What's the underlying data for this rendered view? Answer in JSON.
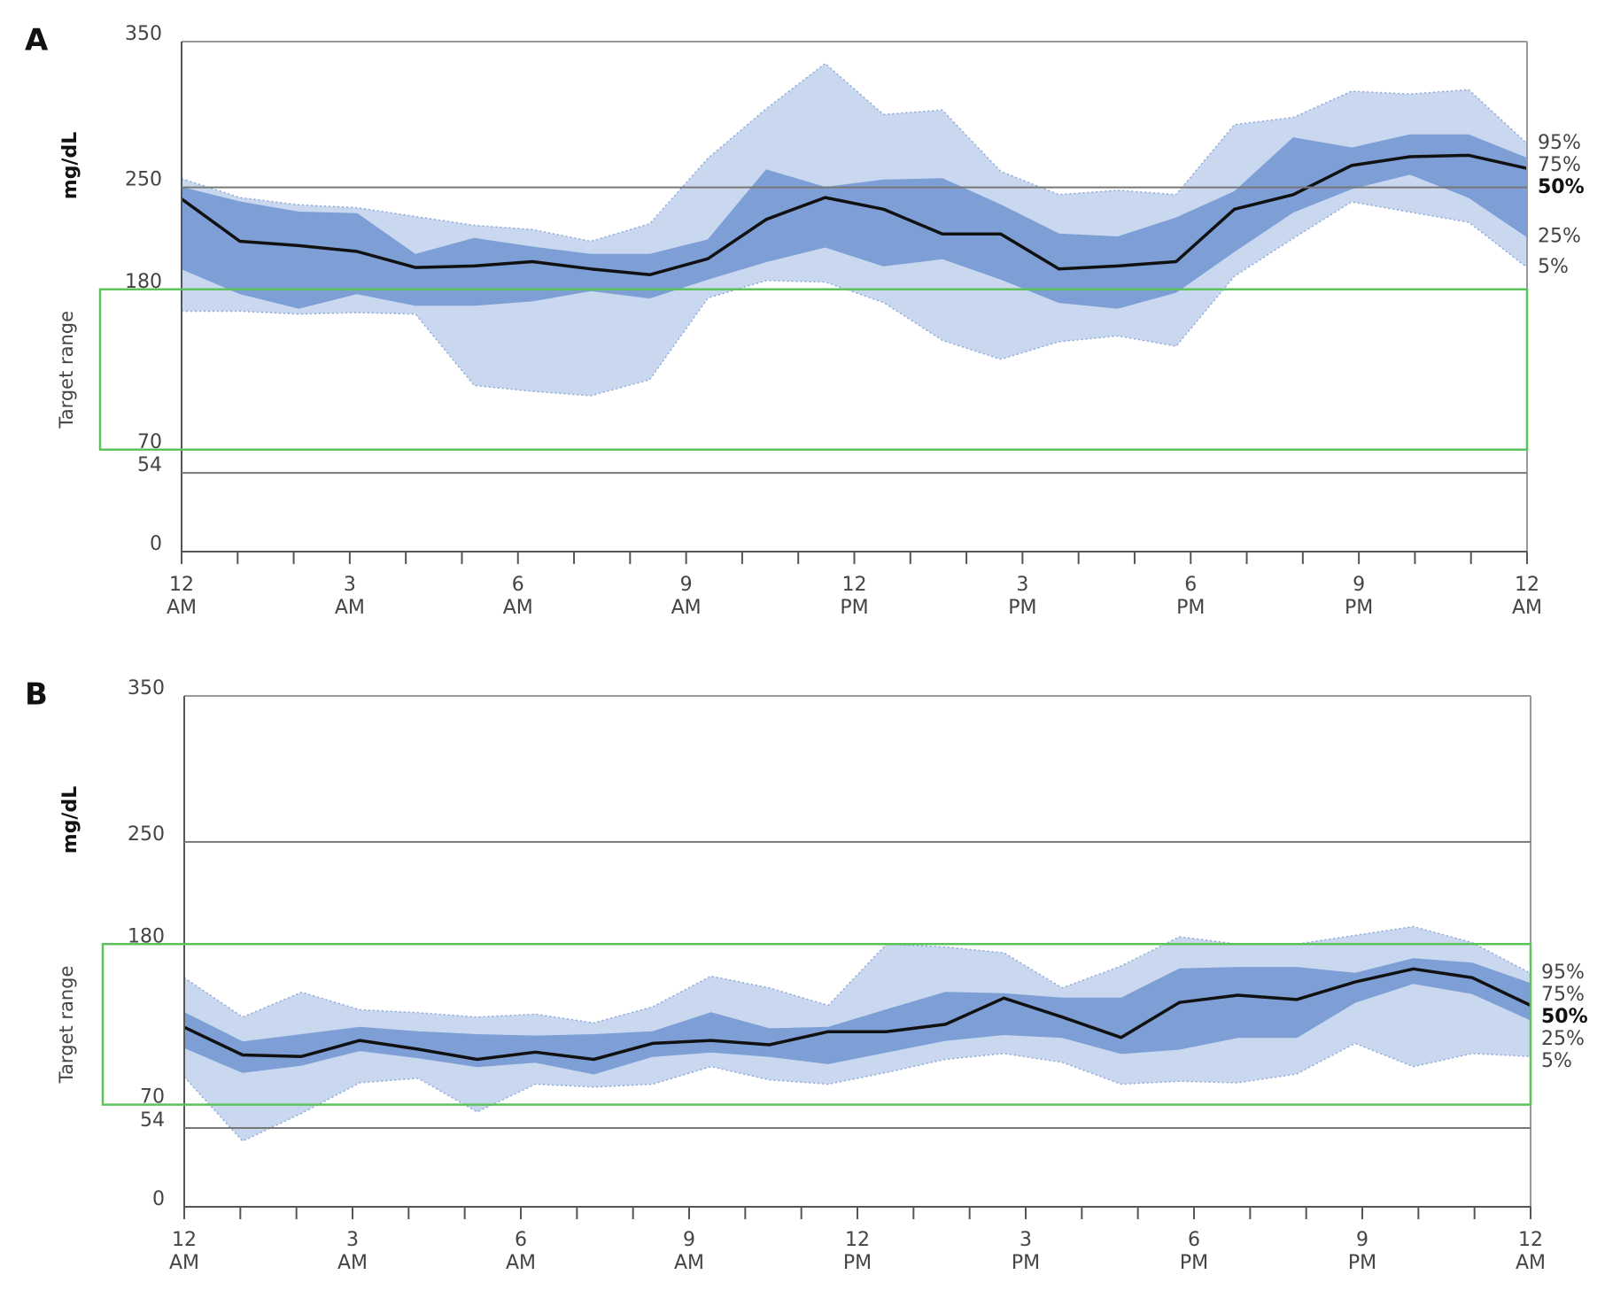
{
  "chart_data": [
    {
      "type": "line",
      "label": "A",
      "ylabel": "mg/dL",
      "target_label": "Target range",
      "target_range": [
        70,
        180
      ],
      "target_color": "#5cc25c",
      "ylim": [
        0,
        350
      ],
      "yticks": [
        0,
        54,
        70,
        180,
        250,
        350
      ],
      "grid_lines": [
        54,
        250
      ],
      "xlim": [
        0,
        24
      ],
      "xticks": [
        {
          "value": 0,
          "label": [
            "12",
            "AM"
          ]
        },
        {
          "value": 3,
          "label": [
            "3",
            "AM"
          ]
        },
        {
          "value": 6,
          "label": [
            "6",
            "AM"
          ]
        },
        {
          "value": 9,
          "label": [
            "9",
            "AM"
          ]
        },
        {
          "value": 12,
          "label": [
            "12",
            "PM"
          ]
        },
        {
          "value": 15,
          "label": [
            "3",
            "PM"
          ]
        },
        {
          "value": 18,
          "label": [
            "6",
            "PM"
          ]
        },
        {
          "value": 21,
          "label": [
            "9",
            "PM"
          ]
        },
        {
          "value": 24,
          "label": [
            "12",
            "AM"
          ]
        }
      ],
      "xminorticks": [
        1,
        2,
        4,
        5,
        7,
        8,
        10,
        11,
        13,
        14,
        16,
        17,
        19,
        20,
        22,
        23
      ],
      "x": [
        0,
        1.04,
        2.09,
        3.13,
        4.17,
        5.22,
        6.26,
        7.3,
        8.35,
        9.39,
        10.43,
        11.48,
        12.52,
        13.57,
        14.61,
        15.65,
        16.7,
        17.74,
        18.78,
        19.83,
        20.87,
        21.91,
        22.96,
        24
      ],
      "series": [
        {
          "name": "95%",
          "color": "#c9d8ef",
          "values": [
            256,
            243,
            238,
            236,
            230,
            224,
            221,
            213,
            225,
            270,
            304,
            335,
            300,
            303,
            261,
            245,
            248,
            245,
            293,
            298,
            316,
            314,
            317,
            280
          ]
        },
        {
          "name": "75%",
          "color": "#7d9fd6",
          "values": [
            250,
            240,
            233,
            232,
            204,
            215,
            209,
            204,
            204,
            214,
            262,
            250,
            255,
            256,
            238,
            218,
            216,
            229,
            247,
            284,
            277,
            286,
            286,
            270
          ]
        },
        {
          "name": "50%",
          "color": "#111111",
          "values": [
            242,
            213,
            210,
            206,
            195,
            196,
            199,
            194,
            190,
            201,
            228,
            243,
            235,
            218,
            218,
            194,
            196,
            199,
            235,
            245,
            265,
            271,
            272,
            263
          ]
        },
        {
          "name": "25%",
          "color": "#7d9fd6",
          "values": [
            194,
            177,
            167,
            177,
            169,
            169,
            172,
            179,
            174,
            187,
            199,
            209,
            196,
            201,
            187,
            171,
            167,
            178,
            206,
            233,
            249,
            259,
            243,
            216
          ]
        },
        {
          "name": "5%",
          "color": "#c9d8ef",
          "values": [
            165,
            165,
            163,
            164,
            163,
            114,
            110,
            107,
            118,
            174,
            186,
            185,
            171,
            145,
            132,
            144,
            148,
            141,
            189,
            215,
            240,
            233,
            226,
            195
          ]
        }
      ]
    },
    {
      "type": "line",
      "label": "B",
      "ylabel": "mg/dL",
      "target_label": "Target range",
      "target_range": [
        70,
        180
      ],
      "target_color": "#5cc25c",
      "ylim": [
        0,
        350
      ],
      "yticks": [
        0,
        54,
        70,
        180,
        250,
        350
      ],
      "grid_lines": [
        54,
        250
      ],
      "xlim": [
        0,
        24
      ],
      "xticks": [
        {
          "value": 0,
          "label": [
            "12",
            "AM"
          ]
        },
        {
          "value": 3,
          "label": [
            "3",
            "AM"
          ]
        },
        {
          "value": 6,
          "label": [
            "6",
            "AM"
          ]
        },
        {
          "value": 9,
          "label": [
            "9",
            "AM"
          ]
        },
        {
          "value": 12,
          "label": [
            "12",
            "PM"
          ]
        },
        {
          "value": 15,
          "label": [
            "3",
            "PM"
          ]
        },
        {
          "value": 18,
          "label": [
            "6",
            "PM"
          ]
        },
        {
          "value": 21,
          "label": [
            "9",
            "PM"
          ]
        },
        {
          "value": 24,
          "label": [
            "12",
            "AM"
          ]
        }
      ],
      "xminorticks": [
        1,
        2,
        4,
        5,
        7,
        8,
        10,
        11,
        13,
        14,
        16,
        17,
        19,
        20,
        22,
        23
      ],
      "x": [
        0,
        1.04,
        2.09,
        3.13,
        4.17,
        5.22,
        6.26,
        7.3,
        8.35,
        9.39,
        10.43,
        11.48,
        12.52,
        13.57,
        14.61,
        15.65,
        16.7,
        17.74,
        18.78,
        19.83,
        20.87,
        21.91,
        22.96,
        24
      ],
      "series": [
        {
          "name": "95%",
          "color": "#c9d8ef",
          "values": [
            157,
            130,
            147,
            135,
            133,
            130,
            132,
            126,
            137,
            158,
            150,
            138,
            180,
            178,
            174,
            150,
            165,
            185,
            180,
            180,
            186,
            192,
            181,
            160
          ]
        },
        {
          "name": "75%",
          "color": "#7d9fd6",
          "values": [
            133,
            113,
            118,
            123,
            120,
            118,
            117,
            118,
            120,
            133,
            122,
            123,
            135,
            147,
            146,
            143,
            143,
            163,
            164,
            164,
            160,
            170,
            167,
            153
          ]
        },
        {
          "name": "50%",
          "color": "#111111",
          "values": [
            123,
            104,
            103,
            114,
            108,
            101,
            106,
            101,
            112,
            114,
            111,
            120,
            120,
            125,
            143,
            130,
            116,
            140,
            145,
            142,
            154,
            163,
            157,
            138
          ]
        },
        {
          "name": "25%",
          "color": "#7d9fd6",
          "values": [
            109,
            92,
            97,
            107,
            102,
            96,
            99,
            91,
            103,
            106,
            103,
            98,
            106,
            114,
            118,
            116,
            105,
            108,
            116,
            116,
            140,
            153,
            146,
            128
          ]
        },
        {
          "name": "5%",
          "color": "#c9d8ef",
          "values": [
            89,
            45,
            64,
            85,
            88,
            65,
            84,
            82,
            84,
            96,
            87,
            84,
            92,
            101,
            105,
            99,
            84,
            86,
            85,
            91,
            112,
            96,
            105,
            103
          ]
        }
      ]
    }
  ]
}
